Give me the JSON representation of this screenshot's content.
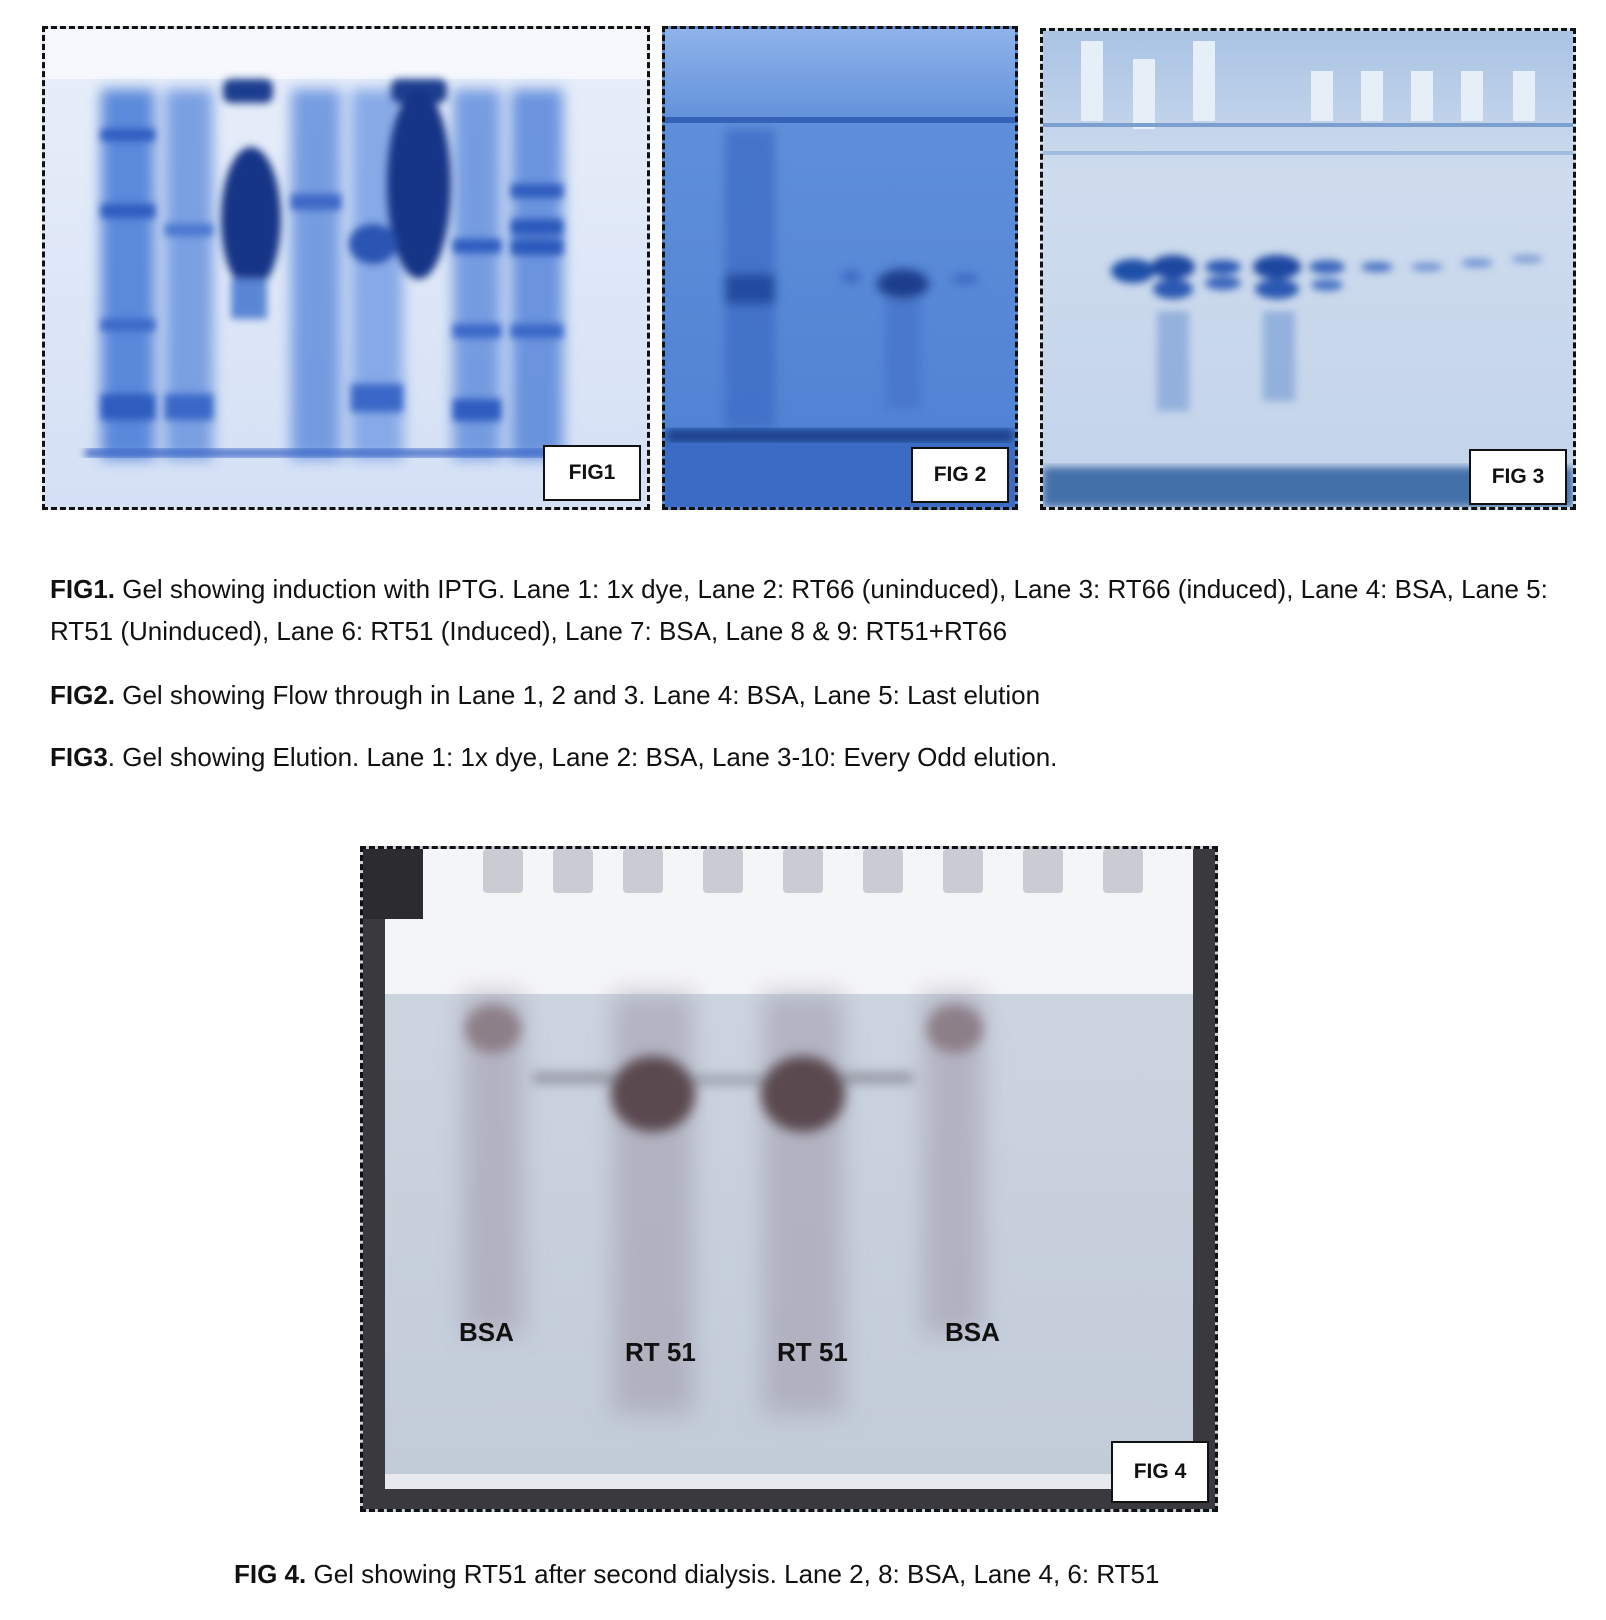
{
  "figures": {
    "fig1": {
      "label": "FIG1"
    },
    "fig2": {
      "label": "FIG 2"
    },
    "fig3": {
      "label": "FIG 3"
    },
    "fig4": {
      "label": "FIG 4",
      "lane_labels": [
        "BSA",
        "RT 51",
        "RT 51",
        "BSA"
      ]
    }
  },
  "captions": {
    "fig1": {
      "bold": "FIG1.",
      "text": " Gel showing induction with IPTG. Lane 1: 1x dye, Lane 2: RT66 (uninduced), Lane 3: RT66 (induced), Lane 4: BSA, Lane 5: RT51 (Uninduced), Lane 6: RT51 (Induced), Lane 7: BSA, Lane 8 & 9: RT51+RT66"
    },
    "fig2": {
      "bold": "FIG2.",
      "text": " Gel showing Flow through in Lane 1, 2 and 3. Lane 4: BSA, Lane 5: Last elution"
    },
    "fig3": {
      "bold": "FIG3",
      "text": ". Gel showing Elution. Lane 1: 1x dye, Lane 2: BSA, Lane 3-10: Every Odd elution."
    },
    "fig4": {
      "bold": "FIG 4.",
      "text": " Gel showing RT51 after second dialysis. Lane 2, 8: BSA, Lane 4, 6: RT51"
    }
  }
}
